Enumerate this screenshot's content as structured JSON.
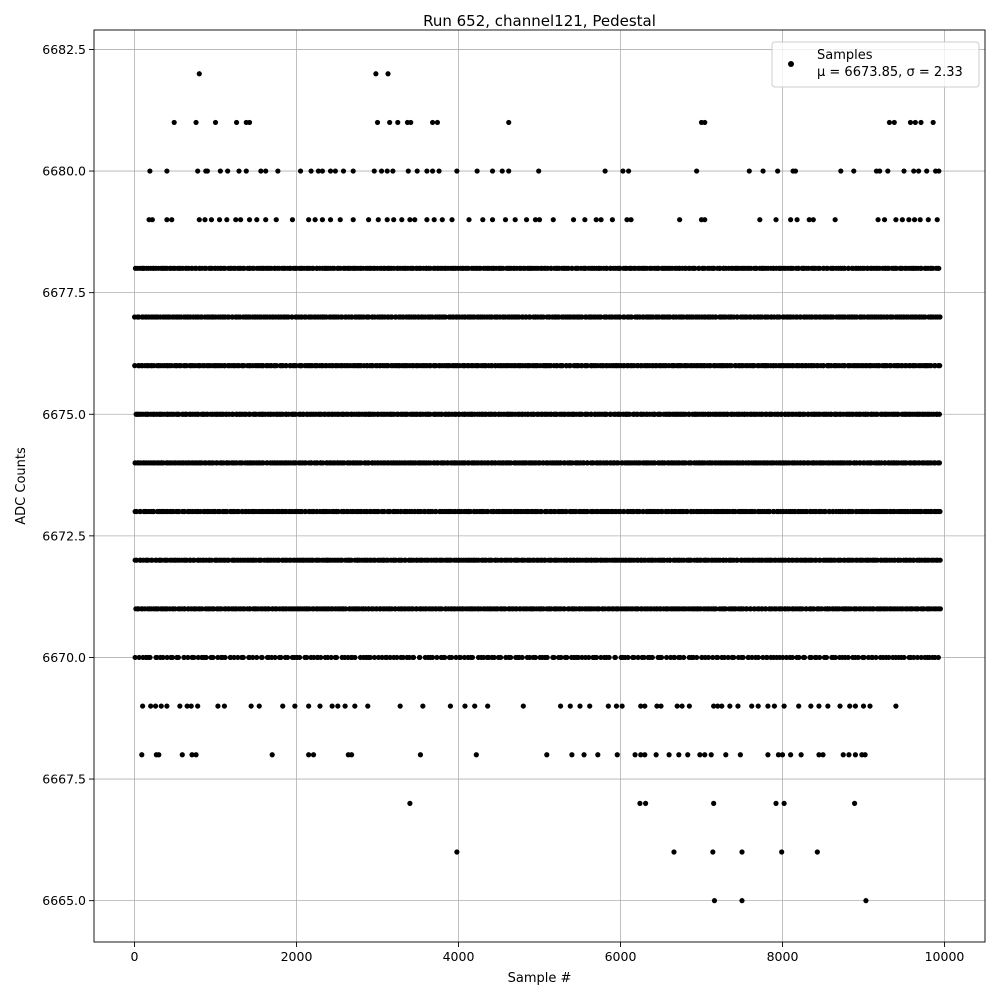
{
  "chart_data": {
    "type": "scatter",
    "title": "Run 652, channel121, Pedestal",
    "xlabel": "Sample #",
    "ylabel": "ADC Counts",
    "xlim": [
      -500,
      10500
    ],
    "ylim": [
      6664.15,
      6682.9
    ],
    "xticks": [
      0,
      2000,
      4000,
      6000,
      8000,
      10000
    ],
    "yticks": [
      6665.0,
      6667.5,
      6670.0,
      6672.5,
      6675.0,
      6677.5,
      6680.0,
      6682.5
    ],
    "xtick_labels": [
      "0",
      "2000",
      "4000",
      "6000",
      "8000",
      "10000"
    ],
    "ytick_labels": [
      "6665.0",
      "6667.5",
      "6670.0",
      "6672.5",
      "6675.0",
      "6677.5",
      "6680.0",
      "6682.5"
    ],
    "grid": true,
    "legend_position": "top-right",
    "point_color": "#000000",
    "series": [
      {
        "name": "Samples",
        "stats_label": "μ = 6673.85, σ = 2.33",
        "dense_levels": [
          {
            "y": 6671,
            "x_ranges": [
              [
                0,
                9950
              ]
            ]
          },
          {
            "y": 6672,
            "x_ranges": [
              [
                0,
                9950
              ]
            ]
          },
          {
            "y": 6673,
            "x_ranges": [
              [
                0,
                9950
              ]
            ]
          },
          {
            "y": 6674,
            "x_ranges": [
              [
                0,
                9950
              ]
            ]
          },
          {
            "y": 6675,
            "x_ranges": [
              [
                0,
                9950
              ]
            ]
          },
          {
            "y": 6676,
            "x_ranges": [
              [
                0,
                9950
              ]
            ]
          },
          {
            "y": 6677,
            "x_ranges": [
              [
                0,
                9950
              ]
            ]
          },
          {
            "y": 6678,
            "x_ranges": [
              [
                0,
                9950
              ]
            ]
          },
          {
            "y": 6670,
            "x_ranges": [
              [
                0,
                9950
              ]
            ]
          }
        ],
        "points": [
          [
            100,
            6669
          ],
          [
            200,
            6669
          ],
          [
            260,
            6669
          ],
          [
            330,
            6669
          ],
          [
            400,
            6669
          ],
          [
            560,
            6669
          ],
          [
            650,
            6669
          ],
          [
            700,
            6669
          ],
          [
            780,
            6669
          ],
          [
            1030,
            6669
          ],
          [
            1110,
            6669
          ],
          [
            1440,
            6669
          ],
          [
            1540,
            6669
          ],
          [
            1830,
            6669
          ],
          [
            1980,
            6669
          ],
          [
            2150,
            6669
          ],
          [
            2290,
            6669
          ],
          [
            2440,
            6669
          ],
          [
            2510,
            6669
          ],
          [
            2600,
            6669
          ],
          [
            2720,
            6669
          ],
          [
            2880,
            6669
          ],
          [
            3280,
            6669
          ],
          [
            3560,
            6669
          ],
          [
            3900,
            6669
          ],
          [
            4080,
            6669
          ],
          [
            4200,
            6669
          ],
          [
            4360,
            6669
          ],
          [
            4800,
            6669
          ],
          [
            5260,
            6669
          ],
          [
            5380,
            6669
          ],
          [
            5500,
            6669
          ],
          [
            5620,
            6669
          ],
          [
            5850,
            6669
          ],
          [
            5950,
            6669
          ],
          [
            6020,
            6669
          ],
          [
            6250,
            6669
          ],
          [
            6300,
            6669
          ],
          [
            6450,
            6669
          ],
          [
            6500,
            6669
          ],
          [
            6700,
            6669
          ],
          [
            6760,
            6669
          ],
          [
            6850,
            6669
          ],
          [
            7150,
            6669
          ],
          [
            7200,
            6669
          ],
          [
            7250,
            6669
          ],
          [
            7350,
            6669
          ],
          [
            7450,
            6669
          ],
          [
            7620,
            6669
          ],
          [
            7700,
            6669
          ],
          [
            7820,
            6669
          ],
          [
            7900,
            6669
          ],
          [
            8020,
            6669
          ],
          [
            8200,
            6669
          ],
          [
            8350,
            6669
          ],
          [
            8450,
            6669
          ],
          [
            8560,
            6669
          ],
          [
            8710,
            6669
          ],
          [
            8830,
            6669
          ],
          [
            8900,
            6669
          ],
          [
            9000,
            6669
          ],
          [
            9080,
            6669
          ],
          [
            9400,
            6669
          ],
          [
            90,
            6668
          ],
          [
            270,
            6668
          ],
          [
            300,
            6668
          ],
          [
            590,
            6668
          ],
          [
            710,
            6668
          ],
          [
            760,
            6668
          ],
          [
            1700,
            6668
          ],
          [
            2150,
            6668
          ],
          [
            2210,
            6668
          ],
          [
            2640,
            6668
          ],
          [
            2680,
            6668
          ],
          [
            3530,
            6668
          ],
          [
            4220,
            6668
          ],
          [
            5090,
            6668
          ],
          [
            5400,
            6668
          ],
          [
            5550,
            6668
          ],
          [
            5720,
            6668
          ],
          [
            5960,
            6668
          ],
          [
            6180,
            6668
          ],
          [
            6250,
            6668
          ],
          [
            6300,
            6668
          ],
          [
            6440,
            6668
          ],
          [
            6600,
            6668
          ],
          [
            6720,
            6668
          ],
          [
            6830,
            6668
          ],
          [
            6980,
            6668
          ],
          [
            7040,
            6668
          ],
          [
            7120,
            6668
          ],
          [
            7300,
            6668
          ],
          [
            7480,
            6668
          ],
          [
            7820,
            6668
          ],
          [
            7950,
            6668
          ],
          [
            8000,
            6668
          ],
          [
            8100,
            6668
          ],
          [
            8230,
            6668
          ],
          [
            8450,
            6668
          ],
          [
            8500,
            6668
          ],
          [
            8750,
            6668
          ],
          [
            8820,
            6668
          ],
          [
            8900,
            6668
          ],
          [
            8980,
            6668
          ],
          [
            9020,
            6668
          ],
          [
            3400,
            6667
          ],
          [
            6240,
            6667
          ],
          [
            6310,
            6667
          ],
          [
            7150,
            6667
          ],
          [
            7920,
            6667
          ],
          [
            8020,
            6667
          ],
          [
            8890,
            6667
          ],
          [
            3980,
            6666
          ],
          [
            6660,
            6666
          ],
          [
            7140,
            6666
          ],
          [
            7500,
            6666
          ],
          [
            7990,
            6666
          ],
          [
            8430,
            6666
          ],
          [
            7160,
            6665
          ],
          [
            7500,
            6665
          ],
          [
            9030,
            6665
          ],
          [
            190,
            6680
          ],
          [
            400,
            6680
          ],
          [
            780,
            6680
          ],
          [
            880,
            6680
          ],
          [
            900,
            6680
          ],
          [
            1060,
            6680
          ],
          [
            1150,
            6680
          ],
          [
            1290,
            6680
          ],
          [
            1380,
            6680
          ],
          [
            1560,
            6680
          ],
          [
            1620,
            6680
          ],
          [
            1770,
            6680
          ],
          [
            2050,
            6680
          ],
          [
            2180,
            6680
          ],
          [
            2270,
            6680
          ],
          [
            2320,
            6680
          ],
          [
            2420,
            6680
          ],
          [
            2480,
            6680
          ],
          [
            2580,
            6680
          ],
          [
            2700,
            6680
          ],
          [
            2960,
            6680
          ],
          [
            3050,
            6680
          ],
          [
            3120,
            6680
          ],
          [
            3190,
            6680
          ],
          [
            3380,
            6680
          ],
          [
            3490,
            6680
          ],
          [
            3610,
            6680
          ],
          [
            3680,
            6680
          ],
          [
            3760,
            6680
          ],
          [
            3980,
            6680
          ],
          [
            4230,
            6680
          ],
          [
            4420,
            6680
          ],
          [
            4540,
            6680
          ],
          [
            4620,
            6680
          ],
          [
            4990,
            6680
          ],
          [
            5810,
            6680
          ],
          [
            6030,
            6680
          ],
          [
            6100,
            6680
          ],
          [
            6940,
            6680
          ],
          [
            7590,
            6680
          ],
          [
            7760,
            6680
          ],
          [
            7940,
            6680
          ],
          [
            8130,
            6680
          ],
          [
            8160,
            6680
          ],
          [
            8720,
            6680
          ],
          [
            8880,
            6680
          ],
          [
            9160,
            6680
          ],
          [
            9200,
            6680
          ],
          [
            9300,
            6680
          ],
          [
            9500,
            6680
          ],
          [
            9620,
            6680
          ],
          [
            9680,
            6680
          ],
          [
            9780,
            6680
          ],
          [
            9890,
            6680
          ],
          [
            9930,
            6680
          ],
          [
            180,
            6679
          ],
          [
            220,
            6679
          ],
          [
            400,
            6679
          ],
          [
            460,
            6679
          ],
          [
            800,
            6679
          ],
          [
            870,
            6679
          ],
          [
            950,
            6679
          ],
          [
            1050,
            6679
          ],
          [
            1140,
            6679
          ],
          [
            1250,
            6679
          ],
          [
            1310,
            6679
          ],
          [
            1420,
            6679
          ],
          [
            1510,
            6679
          ],
          [
            1620,
            6679
          ],
          [
            1750,
            6679
          ],
          [
            1950,
            6679
          ],
          [
            2150,
            6679
          ],
          [
            2230,
            6679
          ],
          [
            2320,
            6679
          ],
          [
            2420,
            6679
          ],
          [
            2540,
            6679
          ],
          [
            2700,
            6679
          ],
          [
            2890,
            6679
          ],
          [
            3010,
            6679
          ],
          [
            3120,
            6679
          ],
          [
            3200,
            6679
          ],
          [
            3300,
            6679
          ],
          [
            3400,
            6679
          ],
          [
            3460,
            6679
          ],
          [
            3610,
            6679
          ],
          [
            3700,
            6679
          ],
          [
            3800,
            6679
          ],
          [
            3920,
            6679
          ],
          [
            4130,
            6679
          ],
          [
            4300,
            6679
          ],
          [
            4420,
            6679
          ],
          [
            4580,
            6679
          ],
          [
            4700,
            6679
          ],
          [
            4840,
            6679
          ],
          [
            4950,
            6679
          ],
          [
            5000,
            6679
          ],
          [
            5170,
            6679
          ],
          [
            5420,
            6679
          ],
          [
            5560,
            6679
          ],
          [
            5700,
            6679
          ],
          [
            5760,
            6679
          ],
          [
            5900,
            6679
          ],
          [
            6080,
            6679
          ],
          [
            6130,
            6679
          ],
          [
            6730,
            6679
          ],
          [
            7000,
            6679
          ],
          [
            7040,
            6679
          ],
          [
            7720,
            6679
          ],
          [
            7920,
            6679
          ],
          [
            8100,
            6679
          ],
          [
            8180,
            6679
          ],
          [
            8330,
            6679
          ],
          [
            8380,
            6679
          ],
          [
            8650,
            6679
          ],
          [
            9180,
            6679
          ],
          [
            9260,
            6679
          ],
          [
            9400,
            6679
          ],
          [
            9480,
            6679
          ],
          [
            9560,
            6679
          ],
          [
            9630,
            6679
          ],
          [
            9700,
            6679
          ],
          [
            9800,
            6679
          ],
          [
            9910,
            6679
          ],
          [
            490,
            6681
          ],
          [
            760,
            6681
          ],
          [
            1000,
            6681
          ],
          [
            1260,
            6681
          ],
          [
            1380,
            6681
          ],
          [
            1420,
            6681
          ],
          [
            3000,
            6681
          ],
          [
            3150,
            6681
          ],
          [
            3250,
            6681
          ],
          [
            3370,
            6681
          ],
          [
            3410,
            6681
          ],
          [
            3680,
            6681
          ],
          [
            3740,
            6681
          ],
          [
            4620,
            6681
          ],
          [
            7000,
            6681
          ],
          [
            7040,
            6681
          ],
          [
            9320,
            6681
          ],
          [
            9380,
            6681
          ],
          [
            9580,
            6681
          ],
          [
            9640,
            6681
          ],
          [
            9710,
            6681
          ],
          [
            9860,
            6681
          ],
          [
            800,
            6682
          ],
          [
            2980,
            6682
          ],
          [
            3130,
            6682
          ]
        ]
      }
    ]
  }
}
